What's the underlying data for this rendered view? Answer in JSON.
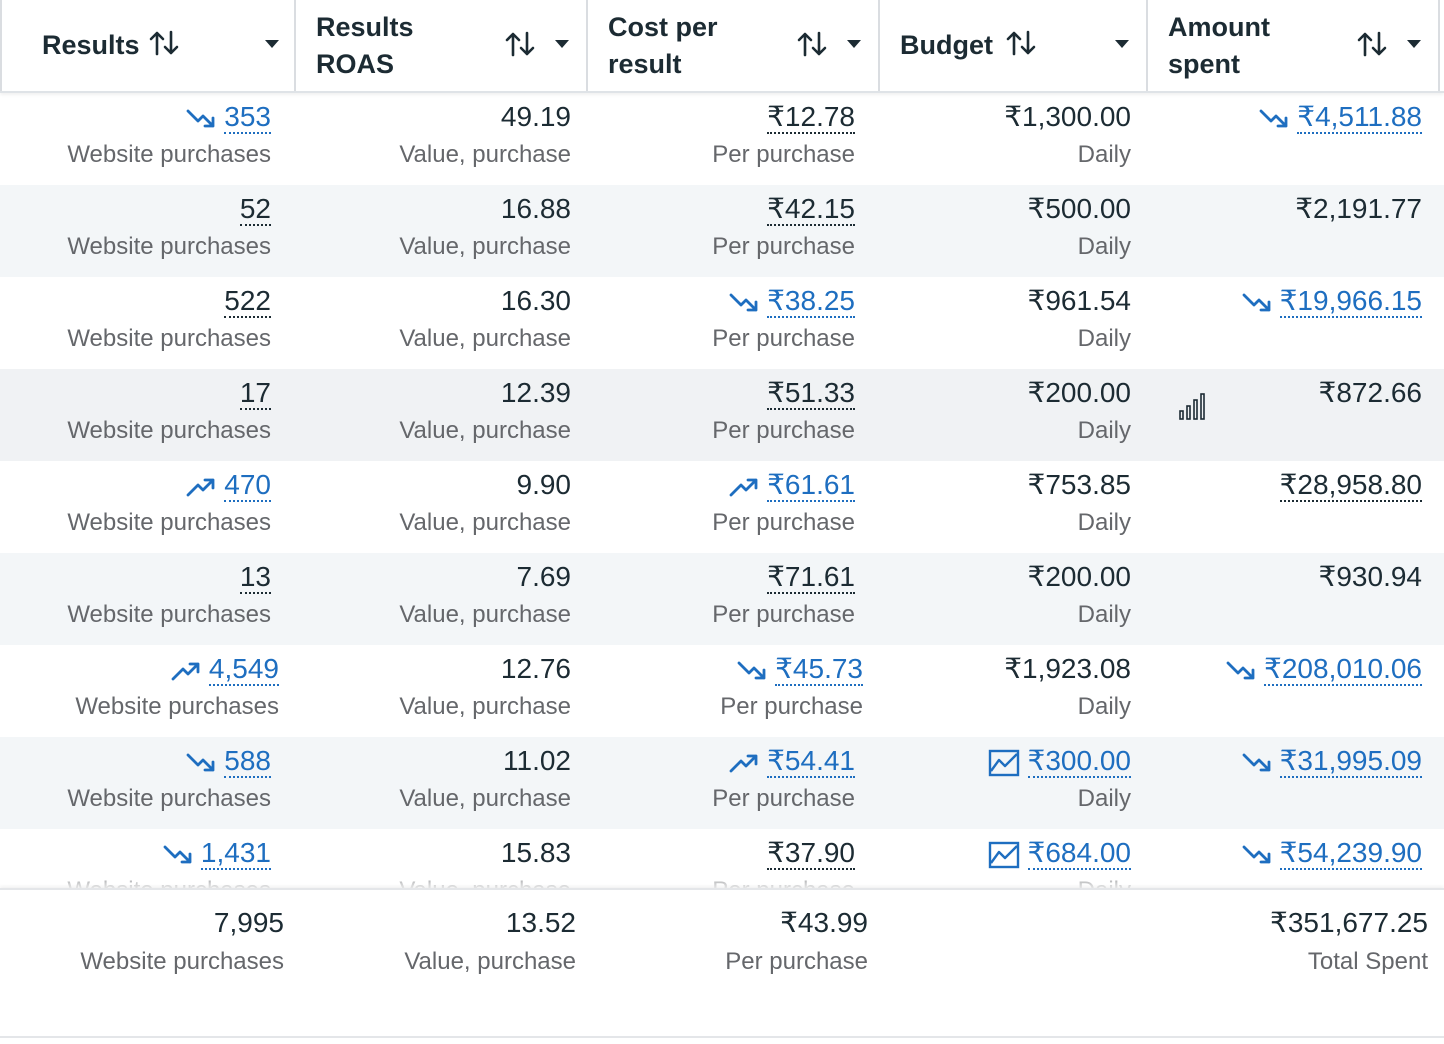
{
  "colors": {
    "link": "#1e6ec0",
    "text": "#1c2b33",
    "muted": "#65676b",
    "alt_row": "#f3f6f8"
  },
  "header": {
    "columns": [
      {
        "label_line1": "Results",
        "label_line2": ""
      },
      {
        "label_line1": "Results",
        "label_line2": "ROAS"
      },
      {
        "label_line1": "Cost per",
        "label_line2": "result"
      },
      {
        "label_line1": "Budget",
        "label_line2": ""
      },
      {
        "label_line1": "Amount",
        "label_line2": "spent"
      }
    ]
  },
  "rows": [
    {
      "results": "353",
      "results_trend": "down",
      "results_link": true,
      "results_sub": "Website purchases",
      "roas": "49.19",
      "roas_sub": "Value, purchase",
      "cpr": "₹12.78",
      "cpr_trend": "",
      "cpr_link": false,
      "cpr_sub": "Per purchase",
      "budget": "₹1,300.00",
      "budget_icon": "",
      "budget_link": false,
      "budget_sub": "Daily",
      "spent": "₹4,511.88",
      "spent_trend": "down",
      "spent_link": true,
      "spent_dotted": true
    },
    {
      "results": "52",
      "results_trend": "",
      "results_link": false,
      "results_sub": "Website purchases",
      "roas": "16.88",
      "roas_sub": "Value, purchase",
      "cpr": "₹42.15",
      "cpr_trend": "",
      "cpr_link": false,
      "cpr_sub": "Per purchase",
      "budget": "₹500.00",
      "budget_icon": "",
      "budget_link": false,
      "budget_sub": "Daily",
      "spent": "₹2,191.77",
      "spent_trend": "",
      "spent_link": false,
      "spent_dotted": false
    },
    {
      "results": "522",
      "results_trend": "",
      "results_link": false,
      "results_sub": "Website purchases",
      "roas": "16.30",
      "roas_sub": "Value, purchase",
      "cpr": "₹38.25",
      "cpr_trend": "down",
      "cpr_link": true,
      "cpr_sub": "Per purchase",
      "budget": "₹961.54",
      "budget_icon": "",
      "budget_link": false,
      "budget_sub": "Daily",
      "spent": "₹19,966.15",
      "spent_trend": "down",
      "spent_link": true,
      "spent_dotted": true
    },
    {
      "results": "17",
      "results_trend": "",
      "results_link": false,
      "results_sub": "Website purchases",
      "roas": "12.39",
      "roas_sub": "Value, purchase",
      "cpr": "₹51.33",
      "cpr_trend": "",
      "cpr_link": false,
      "cpr_sub": "Per purchase",
      "budget": "₹200.00",
      "budget_icon": "",
      "budget_link": false,
      "budget_sub": "Daily",
      "spent": "₹872.66",
      "spent_trend": "",
      "spent_link": false,
      "spent_dotted": false,
      "bars_icon": true
    },
    {
      "results": "470",
      "results_trend": "up",
      "results_link": true,
      "results_sub": "Website purchases",
      "roas": "9.90",
      "roas_sub": "Value, purchase",
      "cpr": "₹61.61",
      "cpr_trend": "up",
      "cpr_link": true,
      "cpr_sub": "Per purchase",
      "budget": "₹753.85",
      "budget_icon": "",
      "budget_link": false,
      "budget_sub": "Daily",
      "spent": "₹28,958.80",
      "spent_trend": "",
      "spent_link": false,
      "spent_dotted": true
    },
    {
      "results": "13",
      "results_trend": "",
      "results_link": false,
      "results_sub": "Website purchases",
      "roas": "7.69",
      "roas_sub": "Value, purchase",
      "cpr": "₹71.61",
      "cpr_trend": "",
      "cpr_link": false,
      "cpr_sub": "Per purchase",
      "budget": "₹200.00",
      "budget_icon": "",
      "budget_link": false,
      "budget_sub": "Daily",
      "spent": "₹930.94",
      "spent_trend": "",
      "spent_link": false,
      "spent_dotted": false
    },
    {
      "results": "4,549",
      "results_trend": "up",
      "results_link": true,
      "results_sub": "Website purchases",
      "roas": "12.76",
      "roas_sub": "Value, purchase",
      "cpr": "₹45.73",
      "cpr_trend": "down",
      "cpr_link": true,
      "cpr_sub": "Per purchase",
      "budget": "₹1,923.08",
      "budget_icon": "",
      "budget_link": false,
      "budget_sub": "Daily",
      "spent": "₹208,010.06",
      "spent_trend": "down",
      "spent_link": true,
      "spent_dotted": true
    },
    {
      "results": "588",
      "results_trend": "down",
      "results_link": true,
      "results_sub": "Website purchases",
      "roas": "11.02",
      "roas_sub": "Value, purchase",
      "cpr": "₹54.41",
      "cpr_trend": "up",
      "cpr_link": true,
      "cpr_sub": "Per purchase",
      "budget": "₹300.00",
      "budget_icon": "chart",
      "budget_link": true,
      "budget_sub": "Daily",
      "spent": "₹31,995.09",
      "spent_trend": "down",
      "spent_link": true,
      "spent_dotted": true
    },
    {
      "results": "1,431",
      "results_trend": "down",
      "results_link": true,
      "results_sub": "Website purchases",
      "roas": "15.83",
      "roas_sub": "Value, purchase",
      "cpr": "₹37.90",
      "cpr_trend": "",
      "cpr_link": false,
      "cpr_sub": "Per purchase",
      "budget": "₹684.00",
      "budget_icon": "chart",
      "budget_link": true,
      "budget_sub": "Daily",
      "spent": "₹54,239.90",
      "spent_trend": "down",
      "spent_link": true,
      "spent_dotted": true
    }
  ],
  "footer": {
    "results": "7,995",
    "results_sub": "Website purchases",
    "roas": "13.52",
    "roas_sub": "Value, purchase",
    "cpr": "₹43.99",
    "cpr_sub": "Per purchase",
    "spent": "₹351,677.25",
    "spent_sub": "Total Spent"
  }
}
